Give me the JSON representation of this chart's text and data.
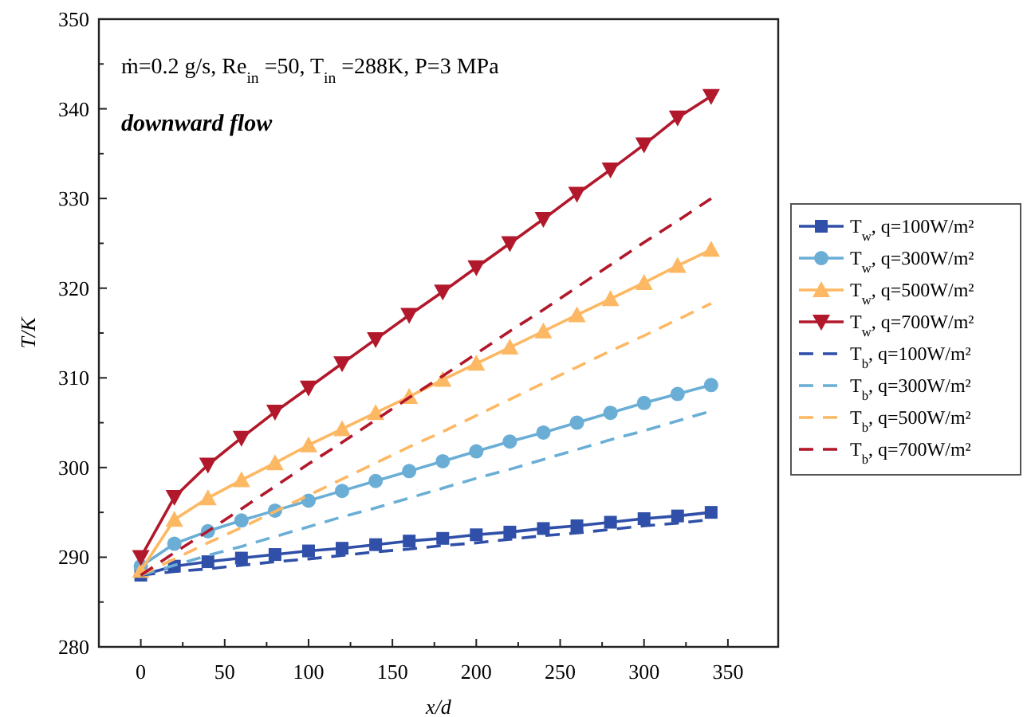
{
  "chart_data": {
    "type": "line",
    "xlabel": "x/d",
    "ylabel": "T/K",
    "annotations": [
      "ṁ=0.2 g/s, Re$_{in}$ =50, T$_{in}$ =288K, P=3 MPa",
      "downward flow"
    ],
    "x": [
      0,
      20,
      40,
      60,
      80,
      100,
      120,
      140,
      160,
      180,
      200,
      220,
      240,
      260,
      280,
      300,
      320,
      340
    ],
    "xlim": [
      -25,
      380
    ],
    "ylim": [
      280,
      350
    ],
    "xticks": [
      0,
      {
        "value": 25,
        "label": null
      },
      50,
      {
        "value": 75,
        "label": null
      },
      100,
      {
        "value": 125,
        "label": null
      },
      150,
      {
        "value": 175,
        "label": null
      },
      200,
      {
        "value": 225,
        "label": null
      },
      250,
      {
        "value": 275,
        "label": null
      },
      300,
      {
        "value": 325,
        "label": null
      },
      350
    ],
    "yticks": [
      280,
      {
        "value": 285,
        "label": null
      },
      290,
      {
        "value": 295,
        "label": null
      },
      300,
      {
        "value": 305,
        "label": null
      },
      310,
      {
        "value": 315,
        "label": null
      },
      320,
      {
        "value": 325,
        "label": null
      },
      330,
      {
        "value": 335,
        "label": null
      },
      340,
      {
        "value": 345,
        "label": null
      },
      350
    ],
    "legend": "right",
    "grid": false,
    "series": [
      {
        "name": "T$_{w}$, q=100W/m²",
        "color": "#2f4fa8",
        "marker": "square",
        "line_style": "solid",
        "values": [
          288,
          289.0,
          289.5,
          289.9,
          290.3,
          290.7,
          291.0,
          291.4,
          291.8,
          292.1,
          292.5,
          292.8,
          293.2,
          293.5,
          293.9,
          294.3,
          294.6,
          295.0
        ]
      },
      {
        "name": "T$_{w}$, q=300W/m²",
        "color": "#6aaed6",
        "marker": "circle",
        "line_style": "solid",
        "values": [
          289,
          291.5,
          292.9,
          294.1,
          295.2,
          296.3,
          297.4,
          298.5,
          299.6,
          300.7,
          301.8,
          302.9,
          303.9,
          305.0,
          306.1,
          307.2,
          308.2,
          309.2
        ]
      },
      {
        "name": "T$_{w}$, q=500W/m²",
        "color": "#fdb863",
        "marker": "triangle",
        "line_style": "solid",
        "values": [
          288.5,
          294.2,
          296.6,
          298.6,
          300.5,
          302.5,
          304.3,
          306.1,
          307.9,
          309.8,
          311.6,
          313.4,
          315.2,
          317.0,
          318.8,
          320.6,
          322.5,
          324.3
        ]
      },
      {
        "name": "T$_{w}$, q=700W/m²",
        "color": "#b2182b",
        "marker": "triangle-down",
        "line_style": "solid",
        "values": [
          290,
          296.7,
          300.3,
          303.3,
          306.2,
          308.9,
          311.6,
          314.3,
          317.0,
          319.6,
          322.3,
          325.0,
          327.7,
          330.5,
          333.2,
          336.0,
          339.0,
          341.4
        ]
      },
      {
        "name": "T$_{b}$, q=100W/m²",
        "color": "#2f4fa8",
        "marker": "none",
        "line_style": "dashed",
        "values": [
          288,
          288.4,
          288.7,
          289.1,
          289.5,
          289.8,
          290.2,
          290.6,
          290.9,
          291.3,
          291.6,
          292.0,
          292.4,
          292.7,
          293.1,
          293.5,
          293.8,
          294.2
        ]
      },
      {
        "name": "T$_{b}$, q=300W/m²",
        "color": "#6aaed6",
        "marker": "none",
        "line_style": "dashed",
        "values": [
          288,
          289.1,
          290.2,
          291.2,
          292.3,
          293.4,
          294.5,
          295.5,
          296.6,
          297.7,
          298.8,
          299.8,
          300.9,
          302.0,
          303.1,
          304.1,
          305.2,
          306.3
        ]
      },
      {
        "name": "T$_{b}$, q=500W/m²",
        "color": "#fdb863",
        "marker": "none",
        "line_style": "dashed",
        "values": [
          288,
          289.8,
          291.6,
          293.3,
          295.1,
          296.9,
          298.7,
          300.5,
          302.3,
          304.0,
          305.8,
          307.6,
          309.4,
          311.2,
          313.0,
          314.7,
          316.5,
          318.3
        ]
      },
      {
        "name": "T$_{b}$, q=700W/m²",
        "color": "#b2182b",
        "marker": "none",
        "line_style": "dashed",
        "values": [
          288,
          290.5,
          292.9,
          295.4,
          297.9,
          300.4,
          302.8,
          305.3,
          307.8,
          310.2,
          312.7,
          315.2,
          317.6,
          320.1,
          322.6,
          325.1,
          327.5,
          330.0
        ]
      }
    ]
  }
}
